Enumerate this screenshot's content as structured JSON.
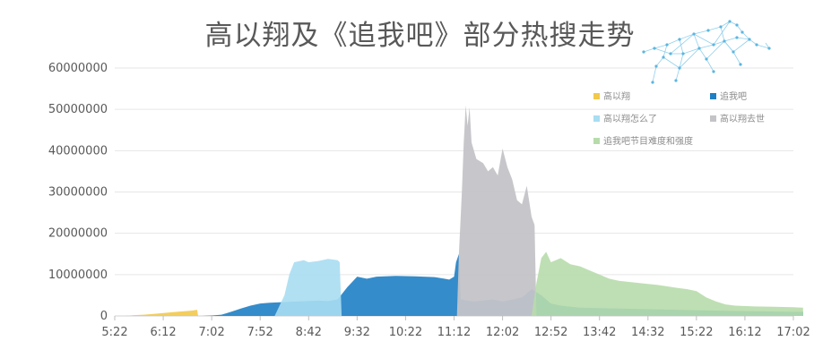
{
  "chart_data": {
    "type": "area",
    "title": "高以翔及《追我吧》部分热搜走势",
    "xlabel": "",
    "ylabel": "",
    "ylim": [
      0,
      60000000
    ],
    "yticks": [
      0,
      10000000,
      20000000,
      30000000,
      40000000,
      50000000,
      60000000
    ],
    "ytick_labels": [
      "0",
      "10000000",
      "20000000",
      "30000000",
      "40000000",
      "50000000",
      "60000000"
    ],
    "xticks": [
      "5:22",
      "6:12",
      "7:02",
      "7:52",
      "8:42",
      "9:32",
      "10:22",
      "11:12",
      "12:02",
      "12:52",
      "13:42",
      "14:32",
      "15:22",
      "16:12",
      "17:02"
    ],
    "grid": true,
    "legend_position": "top-right",
    "series": [
      {
        "name": "高以翔",
        "color": "#f2c94c",
        "points": [
          [
            "5:32",
            0
          ],
          [
            "5:42",
            200000
          ],
          [
            "5:52",
            300000
          ],
          [
            "6:02",
            500000
          ],
          [
            "6:12",
            700000
          ],
          [
            "6:22",
            900000
          ],
          [
            "6:32",
            1100000
          ],
          [
            "6:42",
            1300000
          ],
          [
            "6:47",
            1500000
          ],
          [
            "6:48",
            0
          ]
        ]
      },
      {
        "name": "追我吧",
        "color": "#1f7fc4",
        "points": [
          [
            "6:52",
            0
          ],
          [
            "7:02",
            100000
          ],
          [
            "7:12",
            300000
          ],
          [
            "7:22",
            1000000
          ],
          [
            "7:32",
            1800000
          ],
          [
            "7:42",
            2500000
          ],
          [
            "7:52",
            3000000
          ],
          [
            "8:02",
            3200000
          ],
          [
            "8:12",
            3300000
          ],
          [
            "8:32",
            3500000
          ],
          [
            "8:52",
            3700000
          ],
          [
            "9:02",
            3600000
          ],
          [
            "9:12",
            4000000
          ],
          [
            "9:22",
            7000000
          ],
          [
            "9:32",
            9500000
          ],
          [
            "9:42",
            9000000
          ],
          [
            "9:52",
            9500000
          ],
          [
            "10:12",
            9700000
          ],
          [
            "10:32",
            9600000
          ],
          [
            "10:52",
            9400000
          ],
          [
            "11:02",
            9000000
          ],
          [
            "11:07",
            8800000
          ],
          [
            "11:12",
            9500000
          ],
          [
            "11:14",
            13000000
          ],
          [
            "11:17",
            15000000
          ],
          [
            "11:19",
            4000000
          ],
          [
            "11:32",
            3500000
          ],
          [
            "11:52",
            4000000
          ],
          [
            "12:02",
            3500000
          ],
          [
            "12:22",
            4500000
          ],
          [
            "12:32",
            6500000
          ],
          [
            "12:42",
            5000000
          ],
          [
            "12:52",
            3000000
          ],
          [
            "13:02",
            2500000
          ],
          [
            "13:22",
            2000000
          ],
          [
            "14:02",
            1800000
          ],
          [
            "15:02",
            1500000
          ],
          [
            "16:02",
            1200000
          ],
          [
            "17:02",
            1000000
          ],
          [
            "17:12",
            1000000
          ],
          [
            "17:12",
            0
          ]
        ]
      },
      {
        "name": "高以翔怎么了",
        "color": "#a8ddf2",
        "points": [
          [
            "8:07",
            0
          ],
          [
            "8:17",
            5000000
          ],
          [
            "8:22",
            10000000
          ],
          [
            "8:27",
            13000000
          ],
          [
            "8:37",
            13500000
          ],
          [
            "8:42",
            13000000
          ],
          [
            "8:52",
            13300000
          ],
          [
            "9:02",
            13800000
          ],
          [
            "9:12",
            13500000
          ],
          [
            "9:14",
            13000000
          ],
          [
            "9:16",
            0
          ]
        ]
      },
      {
        "name": "高以翔去世",
        "color": "#c4c4c8",
        "points": [
          [
            "11:15",
            0
          ],
          [
            "11:17",
            15000000
          ],
          [
            "11:20",
            30000000
          ],
          [
            "11:22",
            42000000
          ],
          [
            "11:24",
            51000000
          ],
          [
            "11:26",
            46000000
          ],
          [
            "11:28",
            50500000
          ],
          [
            "11:30",
            42000000
          ],
          [
            "11:35",
            38000000
          ],
          [
            "11:42",
            37000000
          ],
          [
            "11:47",
            35000000
          ],
          [
            "11:52",
            36000000
          ],
          [
            "11:57",
            34000000
          ],
          [
            "12:02",
            40500000
          ],
          [
            "12:07",
            36000000
          ],
          [
            "12:12",
            33000000
          ],
          [
            "12:17",
            28000000
          ],
          [
            "12:22",
            27000000
          ],
          [
            "12:27",
            31500000
          ],
          [
            "12:32",
            24000000
          ],
          [
            "12:35",
            22000000
          ],
          [
            "12:37",
            0
          ]
        ]
      },
      {
        "name": "追我吧节目难度和强度",
        "color": "#b7dcab",
        "points": [
          [
            "12:32",
            0
          ],
          [
            "12:37",
            8000000
          ],
          [
            "12:42",
            14000000
          ],
          [
            "12:47",
            15500000
          ],
          [
            "12:52",
            13000000
          ],
          [
            "13:02",
            14000000
          ],
          [
            "13:12",
            12500000
          ],
          [
            "13:22",
            12000000
          ],
          [
            "13:32",
            11000000
          ],
          [
            "13:42",
            10000000
          ],
          [
            "13:52",
            9000000
          ],
          [
            "14:02",
            8500000
          ],
          [
            "14:22",
            8000000
          ],
          [
            "14:42",
            7500000
          ],
          [
            "15:02",
            6800000
          ],
          [
            "15:12",
            6500000
          ],
          [
            "15:22",
            6000000
          ],
          [
            "15:32",
            4500000
          ],
          [
            "15:42",
            3500000
          ],
          [
            "15:52",
            2800000
          ],
          [
            "16:02",
            2500000
          ],
          [
            "16:22",
            2300000
          ],
          [
            "16:42",
            2200000
          ],
          [
            "17:02",
            2100000
          ],
          [
            "17:12",
            2000000
          ],
          [
            "17:12",
            0
          ]
        ]
      }
    ]
  },
  "decor": {
    "mascot_icon": "cheetah-icon"
  }
}
